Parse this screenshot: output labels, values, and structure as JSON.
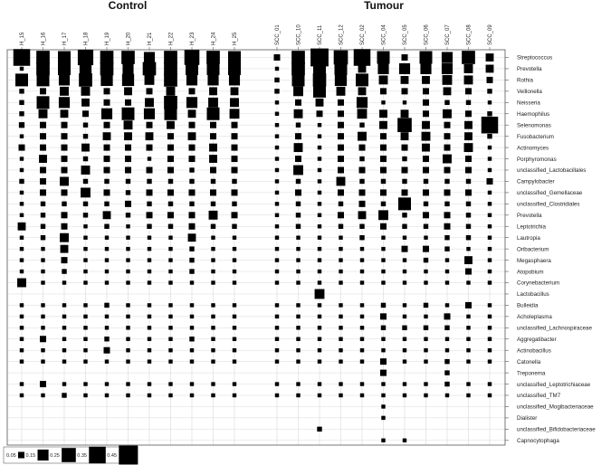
{
  "chart_data": {
    "type": "heatmap",
    "groups": [
      {
        "label": "Control",
        "columns": [
          "H_15",
          "H_16",
          "H_17",
          "H_18",
          "H_19",
          "H_20",
          "H_21",
          "H_22",
          "H_23",
          "H_24",
          "H_25"
        ]
      },
      {
        "label": "Tumour",
        "columns": [
          "SCC_01",
          "SCC_10",
          "SCC_11",
          "SCC_12",
          "SCC_02",
          "SCC_04",
          "SCC_05",
          "SCC_06",
          "SCC_07",
          "SCC_08",
          "SCC_09"
        ]
      }
    ],
    "rows": [
      "Streptococcus",
      "Prevotella",
      "Rothia",
      "Veillonella",
      "Neisseria",
      "Haemophilus",
      "Selenomonas",
      "Fusobacterium",
      "Actinomyces",
      "Porphyromonas",
      "unclassified_Lactobacillales",
      "Campylobacter",
      "unclassified_Gemellaceae",
      "unclassified_Clostridiales",
      "Prevotella",
      "Leptotrichia",
      "Lautropia",
      "Oribacterium",
      "Megasphaera",
      "Atopobium",
      "Corynebacterium",
      "Lactobacillus",
      "Bulleidia",
      "Acholeplasma",
      "unclassified_Lachnospiraceae",
      "Aggregatibacter",
      "Actinobacillus",
      "Catonella",
      "Treponema",
      "unclassified_Leptotrichiaceae",
      "unclassified_TM7",
      "unclassified_Mogibacteriaceae",
      "Dialister",
      "unclassified_Bifidobacteriaceae",
      "Capnocytophaga"
    ],
    "values": [
      [
        0.35,
        0.22,
        0.2,
        0.3,
        0.22,
        0.22,
        0.15,
        0.22,
        0.28,
        0.22,
        0.2,
        0.05,
        0.22,
        0.4,
        0.25,
        0.35,
        0.2,
        0.05,
        0.2,
        0.15,
        0.22,
        0.08
      ],
      [
        0.02,
        0.22,
        0.2,
        0.18,
        0.22,
        0.15,
        0.22,
        0.22,
        0.2,
        0.2,
        0.2,
        0.02,
        0.22,
        0.2,
        0.2,
        0.08,
        0.15,
        0.15,
        0.15,
        0.15,
        0.1,
        0.08
      ],
      [
        0.2,
        0.2,
        0.15,
        0.22,
        0.18,
        0.18,
        0.12,
        0.22,
        0.15,
        0.15,
        0.15,
        0.03,
        0.2,
        0.22,
        0.18,
        0.2,
        0.1,
        0.08,
        0.08,
        0.12,
        0.1,
        0.05
      ],
      [
        0.03,
        0.05,
        0.1,
        0.1,
        0.05,
        0.08,
        0.05,
        0.1,
        0.05,
        0.08,
        0.08,
        0.03,
        0.12,
        0.2,
        0.1,
        0.08,
        0.05,
        0.05,
        0.05,
        0.08,
        0.05,
        0.03
      ],
      [
        0.03,
        0.2,
        0.15,
        0.08,
        0.05,
        0.05,
        0.1,
        0.22,
        0.15,
        0.12,
        0.1,
        0.02,
        0.05,
        0.08,
        0.05,
        0.15,
        0.02,
        0.02,
        0.05,
        0.03,
        0.03,
        0.02
      ],
      [
        0.03,
        0.1,
        0.08,
        0.05,
        0.15,
        0.2,
        0.15,
        0.2,
        0.08,
        0.2,
        0.12,
        0.02,
        0.1,
        0.05,
        0.05,
        0.12,
        0.08,
        0.08,
        0.05,
        0.1,
        0.05,
        0.03
      ],
      [
        0.04,
        0.05,
        0.05,
        0.03,
        0.05,
        0.1,
        0.05,
        0.08,
        0.05,
        0.05,
        0.05,
        0.02,
        0.03,
        0.02,
        0.05,
        0.03,
        0.08,
        0.25,
        0.08,
        0.05,
        0.08,
        0.35
      ],
      [
        0.02,
        0.05,
        0.05,
        0.03,
        0.08,
        0.08,
        0.08,
        0.05,
        0.08,
        0.05,
        0.05,
        0.02,
        0.05,
        0.02,
        0.05,
        0.1,
        0.05,
        0.08,
        0.1,
        0.05,
        0.08,
        0.03
      ],
      [
        0.05,
        0.05,
        0.05,
        0.08,
        0.05,
        0.05,
        0.05,
        0.05,
        0.05,
        0.08,
        0.05,
        0.02,
        0.1,
        0.02,
        0.05,
        0.05,
        0.05,
        0.05,
        0.08,
        0.05,
        0.1,
        0.02
      ],
      [
        0.02,
        0.08,
        0.05,
        0.03,
        0.05,
        0.05,
        0.02,
        0.05,
        0.05,
        0.08,
        0.05,
        0.02,
        0.05,
        0.02,
        0.05,
        0.03,
        0.05,
        0.03,
        0.05,
        0.1,
        0.05,
        0.02
      ],
      [
        0.02,
        0.05,
        0.05,
        0.1,
        0.05,
        0.05,
        0.05,
        0.05,
        0.03,
        0.05,
        0.05,
        0.02,
        0.12,
        0.02,
        0.05,
        0.05,
        0.05,
        0.05,
        0.05,
        0.05,
        0.05,
        0.02
      ],
      [
        0.03,
        0.05,
        0.1,
        0.03,
        0.03,
        0.03,
        0.03,
        0.03,
        0.03,
        0.03,
        0.03,
        0.02,
        0.03,
        0.02,
        0.1,
        0.03,
        0.03,
        0.03,
        0.03,
        0.03,
        0.03,
        0.05
      ],
      [
        0.02,
        0.05,
        0.05,
        0.12,
        0.05,
        0.03,
        0.05,
        0.05,
        0.05,
        0.05,
        0.05,
        0.02,
        0.05,
        0.02,
        0.05,
        0.05,
        0.05,
        0.05,
        0.05,
        0.05,
        0.05,
        0.02
      ],
      [
        0.02,
        0.03,
        0.03,
        0.03,
        0.03,
        0.05,
        0.03,
        0.03,
        0.03,
        0.03,
        0.03,
        0.02,
        0.03,
        0.02,
        0.03,
        0.05,
        0.03,
        0.2,
        0.03,
        0.03,
        0.03,
        0.02
      ],
      [
        0.02,
        0.03,
        0.05,
        0.03,
        0.08,
        0.03,
        0.05,
        0.05,
        0.05,
        0.1,
        0.05,
        0.02,
        0.03,
        0.02,
        0.05,
        0.08,
        0.12,
        0.03,
        0.05,
        0.05,
        0.03,
        0.02
      ],
      [
        0.08,
        0.03,
        0.05,
        0.02,
        0.03,
        0.02,
        0.03,
        0.03,
        0.05,
        0.03,
        0.03,
        0.02,
        0.03,
        0.02,
        0.03,
        0.03,
        0.05,
        0.03,
        0.03,
        0.05,
        0.03,
        0.02
      ],
      [
        0.02,
        0.03,
        0.1,
        0.02,
        0.02,
        0.02,
        0.02,
        0.02,
        0.08,
        0.02,
        0.02,
        0.02,
        0.02,
        0.02,
        0.02,
        0.03,
        0.02,
        0.02,
        0.02,
        0.03,
        0.03,
        0.02
      ],
      [
        0.02,
        0.02,
        0.08,
        0.02,
        0.02,
        0.02,
        0.02,
        0.02,
        0.03,
        0.02,
        0.02,
        0.02,
        0.02,
        0.02,
        0.02,
        0.02,
        0.02,
        0.05,
        0.05,
        0.03,
        0.02,
        0.02
      ],
      [
        0.02,
        0.02,
        0.05,
        0.02,
        0.02,
        0.02,
        0.02,
        0.02,
        0.03,
        0.02,
        0.02,
        0.02,
        0.02,
        0.02,
        0.02,
        0.02,
        0.02,
        0.02,
        0.03,
        0.02,
        0.08,
        0.02
      ],
      [
        0.02,
        0.02,
        0.03,
        0.02,
        0.02,
        0.02,
        0.02,
        0.02,
        0.03,
        0.02,
        0.02,
        0.02,
        0.02,
        0.02,
        0.02,
        0.02,
        0.02,
        0.02,
        0.02,
        0.02,
        0.05,
        0.02
      ],
      [
        0.1,
        0.02,
        0.02,
        0.02,
        0.02,
        0.02,
        0.02,
        0.02,
        0.02,
        0.02,
        0.02,
        0.02,
        0.02,
        0.02,
        0.02,
        0.02,
        0.02,
        0.02,
        0.02,
        0.02,
        0.02,
        0.02
      ],
      [
        0.0,
        0.0,
        0.0,
        0.0,
        0.0,
        0.0,
        0.0,
        0.0,
        0.0,
        0.0,
        0.0,
        0.0,
        0.0,
        0.12,
        0.0,
        0.0,
        0.0,
        0.0,
        0.0,
        0.0,
        0.0,
        0.0
      ],
      [
        0.02,
        0.02,
        0.02,
        0.02,
        0.03,
        0.02,
        0.02,
        0.02,
        0.02,
        0.02,
        0.02,
        0.02,
        0.02,
        0.02,
        0.02,
        0.02,
        0.03,
        0.02,
        0.03,
        0.02,
        0.05,
        0.02
      ],
      [
        0.02,
        0.02,
        0.02,
        0.02,
        0.02,
        0.02,
        0.02,
        0.02,
        0.02,
        0.02,
        0.02,
        0.02,
        0.02,
        0.02,
        0.02,
        0.02,
        0.05,
        0.02,
        0.02,
        0.05,
        0.02,
        0.02
      ],
      [
        0.02,
        0.02,
        0.02,
        0.02,
        0.02,
        0.02,
        0.02,
        0.02,
        0.02,
        0.02,
        0.02,
        0.02,
        0.02,
        0.02,
        0.02,
        0.02,
        0.03,
        0.03,
        0.03,
        0.03,
        0.02,
        0.02
      ],
      [
        0.02,
        0.05,
        0.02,
        0.02,
        0.03,
        0.02,
        0.02,
        0.02,
        0.03,
        0.02,
        0.02,
        0.02,
        0.02,
        0.02,
        0.02,
        0.02,
        0.02,
        0.02,
        0.02,
        0.02,
        0.02,
        0.02
      ],
      [
        0.02,
        0.02,
        0.02,
        0.02,
        0.05,
        0.02,
        0.02,
        0.02,
        0.02,
        0.02,
        0.02,
        0.02,
        0.02,
        0.02,
        0.02,
        0.02,
        0.02,
        0.02,
        0.02,
        0.02,
        0.02,
        0.02
      ],
      [
        0.02,
        0.02,
        0.02,
        0.02,
        0.02,
        0.02,
        0.02,
        0.02,
        0.02,
        0.02,
        0.02,
        0.02,
        0.02,
        0.02,
        0.02,
        0.02,
        0.05,
        0.02,
        0.02,
        0.03,
        0.02,
        0.02
      ],
      [
        0.0,
        0.0,
        0.0,
        0.0,
        0.0,
        0.0,
        0.0,
        0.0,
        0.0,
        0.0,
        0.0,
        0.0,
        0.0,
        0.0,
        0.0,
        0.0,
        0.05,
        0.0,
        0.0,
        0.03,
        0.0,
        0.0
      ],
      [
        0.02,
        0.05,
        0.02,
        0.02,
        0.02,
        0.02,
        0.02,
        0.02,
        0.02,
        0.02,
        0.02,
        0.02,
        0.02,
        0.02,
        0.02,
        0.02,
        0.02,
        0.02,
        0.02,
        0.03,
        0.02,
        0.02
      ],
      [
        0.02,
        0.02,
        0.03,
        0.02,
        0.02,
        0.02,
        0.02,
        0.02,
        0.02,
        0.02,
        0.02,
        0.02,
        0.02,
        0.02,
        0.02,
        0.02,
        0.02,
        0.02,
        0.02,
        0.02,
        0.02,
        0.02
      ],
      [
        0.0,
        0.0,
        0.0,
        0.0,
        0.0,
        0.0,
        0.0,
        0.0,
        0.0,
        0.0,
        0.0,
        0.0,
        0.0,
        0.0,
        0.0,
        0.0,
        0.02,
        0.0,
        0.0,
        0.0,
        0.0,
        0.0
      ],
      [
        0.0,
        0.0,
        0.0,
        0.0,
        0.0,
        0.0,
        0.0,
        0.0,
        0.0,
        0.0,
        0.0,
        0.0,
        0.0,
        0.0,
        0.0,
        0.0,
        0.02,
        0.0,
        0.0,
        0.0,
        0.0,
        0.0
      ],
      [
        0.0,
        0.0,
        0.0,
        0.0,
        0.0,
        0.0,
        0.0,
        0.0,
        0.0,
        0.0,
        0.0,
        0.0,
        0.0,
        0.03,
        0.0,
        0.0,
        0.0,
        0.0,
        0.0,
        0.0,
        0.0,
        0.0
      ],
      [
        0.0,
        0.0,
        0.0,
        0.0,
        0.0,
        0.0,
        0.0,
        0.0,
        0.0,
        0.0,
        0.0,
        0.0,
        0.0,
        0.0,
        0.0,
        0.0,
        0.02,
        0.02,
        0.0,
        0.0,
        0.0,
        0.0
      ]
    ],
    "legend": {
      "values": [
        0.05,
        0.15,
        0.25,
        0.35,
        0.45
      ],
      "labels": [
        "0.05",
        "0.15",
        "0.25",
        "0.35",
        "0.45"
      ],
      "placement": "bottom-left"
    },
    "max_value": 0.45,
    "mark_color": "#000000",
    "grid": true,
    "grid_color": "#d8d8d8"
  }
}
